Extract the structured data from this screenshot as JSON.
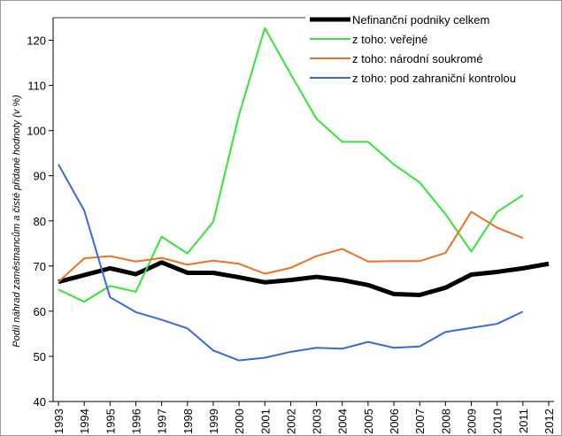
{
  "chart_data": {
    "type": "line",
    "y_label": "Podíl náhrad zaměstnancům a čisté přidané hodnoty (v %)",
    "categories": [
      "1993",
      "1994",
      "1995",
      "1996",
      "1997",
      "1998",
      "1999",
      "2000",
      "2001",
      "2002",
      "2003",
      "2004",
      "2005",
      "2006",
      "2007",
      "2008",
      "2009",
      "2010",
      "2011",
      "2012"
    ],
    "series": [
      {
        "name": "Nefinanční podniky celkem",
        "color": "#000000",
        "width": 5,
        "values": [
          66.5,
          68,
          69.5,
          68.2,
          70.8,
          68.5,
          68.5,
          67.5,
          66.4,
          66.9,
          67.6,
          66.9,
          65.8,
          63.8,
          63.6,
          65.2,
          68.1,
          68.7,
          69.5,
          70.5
        ]
      },
      {
        "name": "z toho: veřejné",
        "color": "#33e633",
        "width": 2,
        "values": [
          64.8,
          62.1,
          65.6,
          64.3,
          76.5,
          72.8,
          79.8,
          103.5,
          122.7,
          112.5,
          102.6,
          97.5,
          97.5,
          92.5,
          88.5,
          81.5,
          73.2,
          82,
          85.7,
          null
        ]
      },
      {
        "name": "z toho: národní soukromé",
        "color": "#f07020",
        "width": 2,
        "values": [
          66.5,
          71.7,
          72.2,
          71,
          71.8,
          70.3,
          71.2,
          70.5,
          68.3,
          69.6,
          72.2,
          73.8,
          71,
          71.1,
          71.1,
          72.9,
          82,
          78.5,
          76.2,
          null
        ]
      },
      {
        "name": "z toho: pod zahraniční kontrolou",
        "color": "#3a66e0",
        "width": 2,
        "values": [
          92.5,
          82.3,
          63.1,
          59.8,
          58.1,
          56.2,
          51.3,
          49.1,
          49.7,
          51,
          51.9,
          51.7,
          53.2,
          51.9,
          52.2,
          55.4,
          56.3,
          57.2,
          59.9,
          null
        ]
      }
    ],
    "ylim": [
      40,
      125
    ],
    "yticks": [
      40,
      50,
      60,
      70,
      80,
      90,
      100,
      110,
      120
    ],
    "legend": "top-right"
  }
}
